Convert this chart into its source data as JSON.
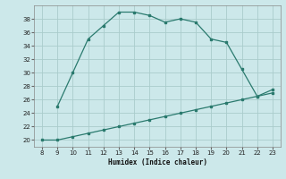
{
  "x_main": [
    9,
    10,
    11,
    12,
    13,
    14,
    15,
    16,
    17,
    18,
    19,
    20,
    21,
    22,
    23
  ],
  "y_main": [
    25,
    30,
    35,
    37,
    39,
    39,
    38.5,
    37.5,
    38,
    37.5,
    35,
    34.5,
    30.5,
    26.5,
    27.5
  ],
  "x_sec": [
    8,
    9,
    10,
    11,
    12,
    13,
    14,
    15,
    16,
    17,
    18,
    19,
    20,
    21,
    22,
    23
  ],
  "y_sec": [
    20,
    20,
    20.5,
    21,
    21.5,
    22,
    22.5,
    23,
    23.5,
    24,
    24.5,
    25,
    25.5,
    26,
    26.5,
    27
  ],
  "line_color": "#2a7a6e",
  "bg_color": "#cce8ea",
  "grid_color": "#aacccc",
  "xlabel": "Humidex (Indice chaleur)",
  "xlim": [
    7.5,
    23.5
  ],
  "ylim": [
    19,
    40
  ],
  "xticks": [
    8,
    9,
    10,
    11,
    12,
    13,
    14,
    15,
    16,
    17,
    18,
    19,
    20,
    21,
    22,
    23
  ],
  "yticks": [
    20,
    22,
    24,
    26,
    28,
    30,
    32,
    34,
    36,
    38
  ]
}
